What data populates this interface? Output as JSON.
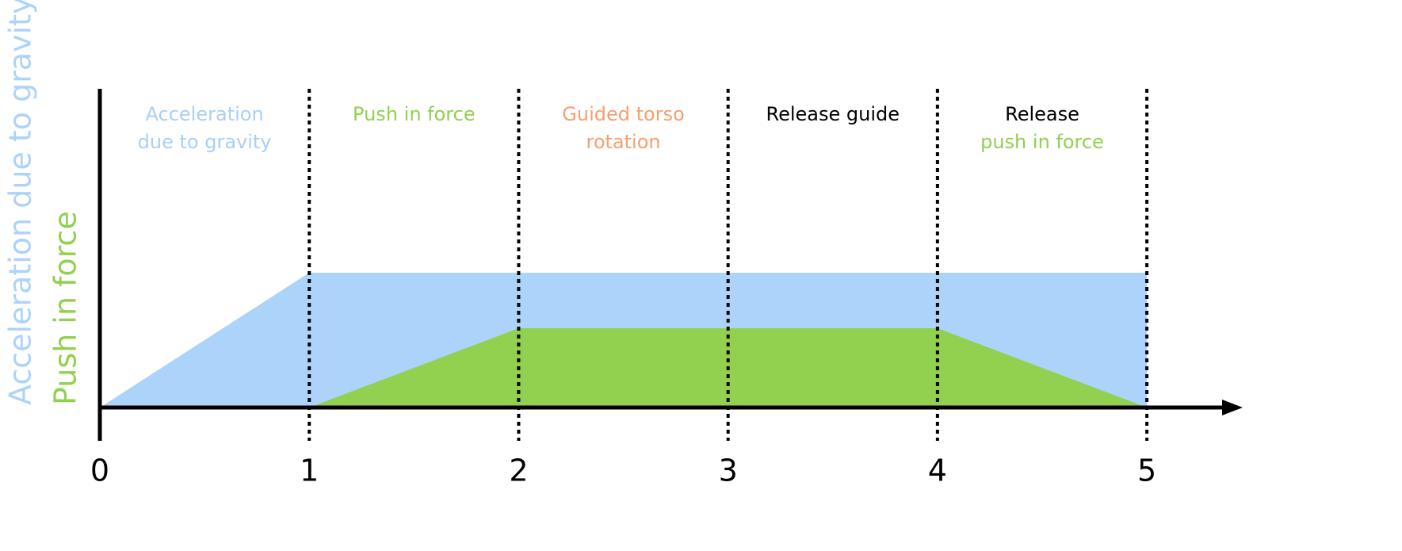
{
  "chart_data": {
    "type": "area",
    "x": [
      0,
      1,
      2,
      3,
      4,
      5
    ],
    "series": [
      {
        "name": "Acceleration due to gravity",
        "color": "#acd3fa",
        "values": [
          0,
          1.7,
          1.7,
          1.7,
          1.7,
          1.7
        ]
      },
      {
        "name": "Push in force",
        "color": "#92d050",
        "values": [
          null,
          0,
          1,
          1,
          1,
          0
        ]
      }
    ],
    "xlim": [
      0,
      5.45
    ],
    "xticks": [
      0,
      1,
      2,
      3,
      4,
      5
    ],
    "ylim": [
      0,
      4
    ],
    "grid": true,
    "annotations": [
      {
        "x": 0.5,
        "lines": [
          {
            "text": "Acceleration",
            "color": "#a9cff5"
          },
          {
            "text": "due to gravity",
            "color": "#a9cff5"
          }
        ]
      },
      {
        "x": 1.5,
        "lines": [
          {
            "text": "Push in force",
            "color": "#92d050"
          }
        ]
      },
      {
        "x": 2.5,
        "lines": [
          {
            "text": "Guided torso",
            "color": "#f4a070"
          },
          {
            "text": "rotation",
            "color": "#f4a070"
          }
        ]
      },
      {
        "x": 3.5,
        "lines": [
          {
            "text": "Release guide",
            "color": "#000000"
          }
        ]
      },
      {
        "x": 4.5,
        "lines": [
          {
            "text": "Release",
            "color": "#000000"
          },
          {
            "text": "push in force",
            "color": "#92d050"
          }
        ]
      }
    ]
  }
}
